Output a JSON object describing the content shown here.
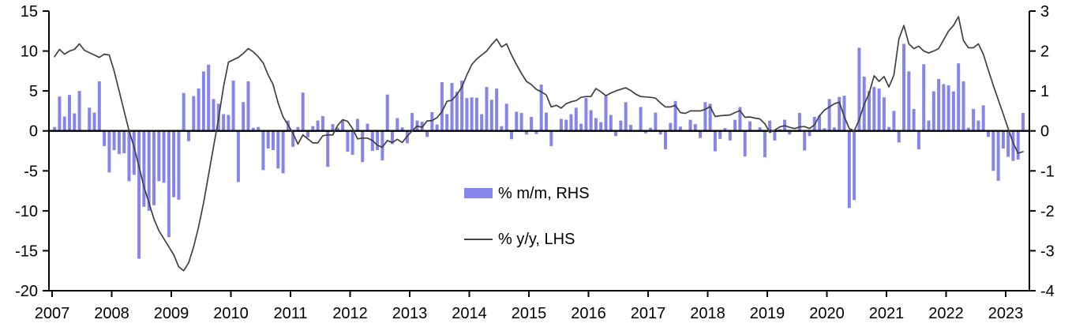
{
  "chart_data": {
    "type": "bar+line combo",
    "title": "",
    "x_unit": "month",
    "x_start_year": 2007,
    "x_tick_years": [
      "2007",
      "2008",
      "2009",
      "2010",
      "2011",
      "2012",
      "2013",
      "2014",
      "2015",
      "2016",
      "2017",
      "2018",
      "2019",
      "2020",
      "2021",
      "2022",
      "2023"
    ],
    "left_axis": {
      "label": "% y/y (LHS)",
      "ticks": [
        "15",
        "10",
        "5",
        "0",
        "-5",
        "-10",
        "-15",
        "-20"
      ],
      "max": 15,
      "min": -20
    },
    "right_axis": {
      "label": "% m/m (RHS)",
      "ticks": [
        "3",
        "2",
        "1",
        "0",
        "-1",
        "-2",
        "-3",
        "-4"
      ],
      "max": 3,
      "min": -4
    },
    "grid": "off",
    "legend_position": "center-inside",
    "series": [
      {
        "name": "% m/m, RHS",
        "type": "bar",
        "axis": "right",
        "color": "#8585EC",
        "values": [
          0.1,
          0.86,
          0.36,
          0.9,
          0.44,
          1.0,
          0.02,
          0.58,
          0.46,
          1.24,
          -0.38,
          -1.04,
          -0.48,
          -0.58,
          -0.56,
          -1.26,
          -1.1,
          -3.2,
          -1.9,
          -2.0,
          -1.86,
          -1.26,
          -1.3,
          -2.66,
          -1.66,
          -1.72,
          0.95,
          -0.26,
          0.87,
          1.06,
          1.49,
          1.66,
          0.8,
          0.68,
          0.42,
          0.4,
          1.26,
          -1.28,
          0.72,
          1.24,
          0.08,
          0.1,
          -0.98,
          -0.44,
          -0.48,
          -0.94,
          -1.06,
          0.26,
          -0.4,
          0.1,
          0.96,
          -0.16,
          0.12,
          0.26,
          0.37,
          -0.9,
          0.17,
          0.08,
          0.26,
          -0.52,
          -0.6,
          0.3,
          -0.78,
          0.18,
          -0.5,
          -0.48,
          -0.74,
          0.91,
          -0.33,
          0.32,
          0.09,
          -0.31,
          0.45,
          0.26,
          0.23,
          -0.15,
          0.47,
          0.16,
          1.22,
          0.42,
          1.2,
          0.98,
          1.26,
          0.82,
          0.84,
          0.83,
          0.42,
          1.1,
          0.78,
          1.06,
          0.12,
          0.68,
          -0.21,
          0.48,
          0.45,
          -0.09,
          0.35,
          -0.08,
          1.16,
          0.46,
          -0.38,
          0.0,
          0.3,
          0.28,
          0.42,
          0.58,
          0.18,
          0.82,
          0.52,
          0.32,
          0.22,
          0.87,
          0.4,
          -0.13,
          0.26,
          0.72,
          0.15,
          0.0,
          0.6,
          -0.06,
          0.08,
          0.46,
          -0.09,
          -0.46,
          0.2,
          0.75,
          0.11,
          0.0,
          0.28,
          0.17,
          -0.18,
          0.72,
          0.68,
          -0.51,
          -0.2,
          0.07,
          -0.24,
          0.28,
          0.6,
          -0.64,
          0.24,
          0.0,
          0.09,
          -0.66,
          0.26,
          -0.24,
          0.04,
          0.28,
          -0.09,
          0.0,
          0.45,
          -0.49,
          -0.13,
          0.35,
          0.38,
          0.07,
          0.8,
          0.09,
          0.85,
          0.88,
          -1.93,
          -1.73,
          2.08,
          1.36,
          1.0,
          1.1,
          1.06,
          0.84,
          0.1,
          0.5,
          -0.29,
          2.18,
          1.49,
          0.55,
          -0.46,
          1.67,
          0.26,
          0.99,
          1.3,
          1.17,
          1.14,
          0.99,
          1.69,
          1.24,
          0.08,
          0.55,
          0.26,
          0.64,
          -0.15,
          -1.0,
          -1.25,
          -0.44,
          -0.65,
          -0.75,
          -0.72,
          0.45
        ]
      },
      {
        "name": "% y/y, LHS",
        "type": "line",
        "axis": "left",
        "color": "#404040",
        "values": [
          9.3,
          10.2,
          9.6,
          10.0,
          10.2,
          10.9,
          10.1,
          9.8,
          9.5,
          9.2,
          9.6,
          9.5,
          7.5,
          5.0,
          2.5,
          0.0,
          -2.0,
          -4.5,
          -7.0,
          -9.0,
          -11.0,
          -12.5,
          -13.5,
          -14.5,
          -15.5,
          -17.0,
          -17.5,
          -16.5,
          -14.5,
          -12.0,
          -9.0,
          -5.5,
          -2.0,
          1.5,
          5.5,
          8.6,
          8.9,
          9.2,
          9.7,
          10.3,
          9.9,
          9.3,
          8.5,
          7.0,
          5.8,
          3.5,
          1.75,
          0.75,
          -0.3,
          -1.65,
          -0.5,
          -1.0,
          -1.5,
          -1.5,
          -0.6,
          -0.5,
          -0.5,
          0.7,
          1.4,
          1.2,
          0.3,
          -1.0,
          -0.9,
          -0.9,
          -1.2,
          -1.8,
          -2.05,
          -1.2,
          -1.45,
          -1.05,
          -1.45,
          -0.65,
          0.0,
          0.6,
          0.45,
          1.25,
          1.3,
          1.65,
          2.4,
          3.7,
          3.85,
          4.55,
          5.5,
          7.0,
          8.3,
          9.0,
          9.5,
          10.0,
          10.8,
          11.5,
          10.5,
          10.9,
          9.5,
          8.3,
          7.2,
          6.2,
          5.8,
          5.2,
          4.9,
          4.5,
          3.0,
          3.2,
          2.85,
          3.4,
          3.65,
          3.8,
          4.2,
          4.3,
          4.3,
          5.3,
          4.9,
          4.4,
          4.75,
          5.0,
          5.2,
          5.4,
          5.05,
          4.6,
          4.3,
          4.25,
          4.2,
          4.1,
          3.5,
          3.0,
          3.0,
          3.2,
          2.3,
          2.2,
          2.5,
          2.5,
          2.5,
          2.7,
          3.05,
          1.8,
          1.9,
          1.95,
          2.0,
          2.3,
          2.55,
          1.7,
          1.75,
          1.6,
          1.5,
          0.9,
          -0.2,
          0.1,
          0.5,
          0.65,
          0.45,
          0.3,
          0.5,
          0.55,
          0.3,
          0.75,
          1.9,
          2.6,
          3.0,
          3.4,
          3.6,
          1.8,
          0.3,
          0.0,
          1.4,
          3.3,
          4.7,
          6.9,
          6.2,
          6.8,
          5.5,
          7.0,
          11.5,
          13.2,
          10.9,
          10.3,
          10.6,
          10.0,
          9.75,
          10.0,
          10.3,
          11.4,
          12.5,
          13.2,
          14.3,
          11.3,
          10.4,
          10.4,
          10.9,
          9.6,
          7.6,
          5.7,
          3.9,
          2.1,
          0.3,
          -1.5,
          -2.8,
          -2.6
        ]
      }
    ],
    "axis_color": "#000000",
    "zero_line_color": "#000000"
  }
}
